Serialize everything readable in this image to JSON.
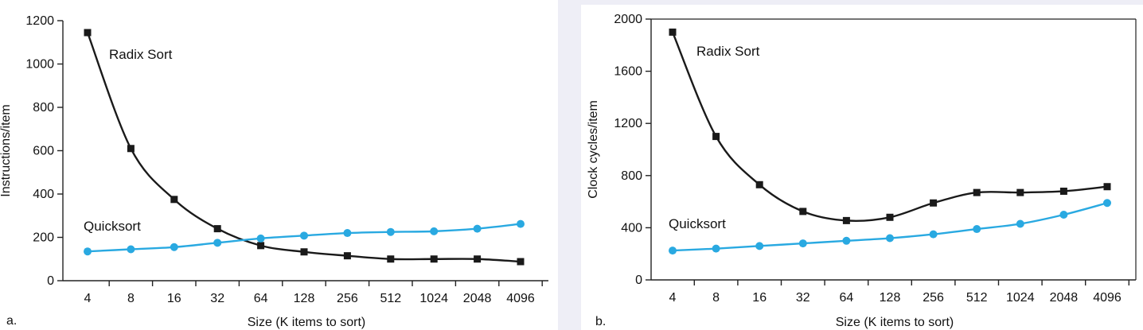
{
  "colors": {
    "radix": "#1a1a1a",
    "quicksort": "#29a9e1",
    "axis": "#222222",
    "panel_b_background": "#eeeef6"
  },
  "chart_data": [
    {
      "panel_label": "a.",
      "type": "line",
      "title": "",
      "xlabel": "Size (K items to sort)",
      "ylabel": "Instructions/item",
      "x_scale": "log2",
      "categories": [
        "4",
        "8",
        "16",
        "32",
        "64",
        "128",
        "256",
        "512",
        "1024",
        "2048",
        "4096"
      ],
      "y_ticks": [
        "0",
        "200",
        "400",
        "600",
        "800",
        "1000",
        "1200"
      ],
      "ylim": [
        0,
        1200
      ],
      "grid": false,
      "series": [
        {
          "name": "Radix Sort",
          "color": "radix",
          "marker": "square",
          "values": [
            1145,
            610,
            375,
            240,
            162,
            133,
            115,
            100,
            100,
            100,
            88
          ]
        },
        {
          "name": "Quicksort",
          "color": "quicksort",
          "marker": "circle",
          "values": [
            135,
            145,
            155,
            175,
            195,
            208,
            220,
            225,
            228,
            240,
            262
          ]
        }
      ]
    },
    {
      "panel_label": "b.",
      "type": "line",
      "title": "",
      "xlabel": "Size (K items to sort)",
      "ylabel": "Clock cycles/item",
      "x_scale": "log2",
      "categories": [
        "4",
        "8",
        "16",
        "32",
        "64",
        "128",
        "256",
        "512",
        "1024",
        "2048",
        "4096"
      ],
      "y_ticks": [
        "0",
        "400",
        "800",
        "1200",
        "1600",
        "2000"
      ],
      "ylim": [
        0,
        2000
      ],
      "grid": false,
      "series": [
        {
          "name": "Radix Sort",
          "color": "radix",
          "marker": "square",
          "values": [
            1900,
            1100,
            730,
            525,
            455,
            480,
            590,
            670,
            670,
            680,
            715
          ]
        },
        {
          "name": "Quicksort",
          "color": "quicksort",
          "marker": "circle",
          "values": [
            225,
            240,
            260,
            280,
            300,
            320,
            350,
            390,
            430,
            500,
            590
          ]
        }
      ]
    }
  ]
}
